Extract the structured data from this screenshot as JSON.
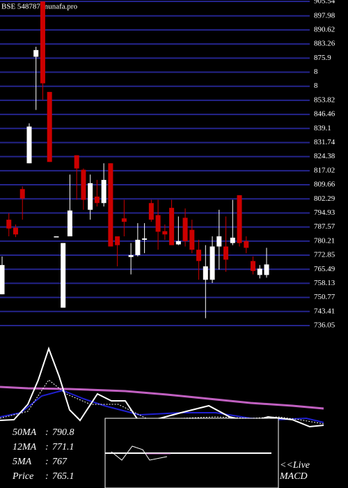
{
  "chart_data": {
    "type": "candlestick",
    "title": "BSE 548787 munafa.pro",
    "up_color": "#ffffff",
    "down_color": "#cc0000",
    "grid_color": "#24248c",
    "grid": true,
    "ylim": [
      736.05,
      905.54
    ],
    "yticks": [
      905.54,
      897.98,
      890.62,
      883.26,
      875.9,
      {
        "value": 868.54,
        "label": "8"
      },
      {
        "value": 861.18,
        "label": "8"
      },
      853.82,
      846.46,
      839.1,
      831.74,
      824.38,
      817.02,
      809.66,
      802.29,
      794.93,
      787.57,
      780.21,
      772.85,
      765.49,
      758.13,
      750.77,
      743.41,
      736.05
    ],
    "candles": [
      {
        "o": 752.4,
        "h": 772.2,
        "l": 752.4,
        "c": 767.7
      },
      {
        "o": 791.4,
        "h": 794.8,
        "l": 782.7,
        "c": 786.8
      },
      {
        "o": 787.2,
        "h": 788.9,
        "l": 782.3,
        "c": 783.7
      },
      {
        "o": 807.4,
        "h": 808.8,
        "l": 791.4,
        "c": 802.5
      },
      {
        "o": 820.9,
        "h": 841.8,
        "l": 820.9,
        "c": 840.1
      },
      {
        "o": 876.6,
        "h": 881.8,
        "l": 848.8,
        "c": 880.1
      },
      {
        "o": 905.5,
        "h": 905.5,
        "l": 854,
        "c": 862.7
      },
      {
        "o": 858.2,
        "h": 858.2,
        "l": 821.6,
        "c": 821.6
      },
      {
        "o": 782.7,
        "h": 782.7,
        "l": 782.7,
        "c": 782.7
      },
      {
        "o": 745.4,
        "h": 779.2,
        "l": 745.4,
        "c": 779.2
      },
      {
        "o": 782.7,
        "h": 815,
        "l": 782.7,
        "c": 796.2
      },
      {
        "o": 825.1,
        "h": 825.1,
        "l": 801.8,
        "c": 818.2
      },
      {
        "o": 817.5,
        "h": 818.2,
        "l": 796.6,
        "c": 801.8
      },
      {
        "o": 796.6,
        "h": 815,
        "l": 791.4,
        "c": 810.5
      },
      {
        "o": 803.5,
        "h": 812.2,
        "l": 798.3,
        "c": 800.1
      },
      {
        "o": 800.1,
        "h": 820.9,
        "l": 798.3,
        "c": 812.2
      },
      {
        "o": 820.9,
        "h": 820.9,
        "l": 777.4,
        "c": 777.4
      },
      {
        "o": 782.7,
        "h": 782.7,
        "l": 767,
        "c": 778.1
      },
      {
        "o": 792.1,
        "h": 801.8,
        "l": 782.7,
        "c": 790.3
      },
      {
        "o": 771.9,
        "h": 779.2,
        "l": 762.8,
        "c": 772.9
      },
      {
        "o": 772.9,
        "h": 789.6,
        "l": 772.2,
        "c": 780.9
      },
      {
        "o": 780.9,
        "h": 789.6,
        "l": 773.9,
        "c": 781.6
      },
      {
        "o": 800.1,
        "h": 801.8,
        "l": 790.3,
        "c": 791.4
      },
      {
        "o": 793.8,
        "h": 801.8,
        "l": 775.7,
        "c": 785.1
      },
      {
        "o": 785.4,
        "h": 788.9,
        "l": 780.9,
        "c": 783.7
      },
      {
        "o": 797.6,
        "h": 801.8,
        "l": 778.1,
        "c": 778.1
      },
      {
        "o": 778.5,
        "h": 793.1,
        "l": 778.1,
        "c": 780.2
      },
      {
        "o": 792.4,
        "h": 797.3,
        "l": 777.4,
        "c": 780.2
      },
      {
        "o": 786.1,
        "h": 791.4,
        "l": 773.9,
        "c": 775.7
      },
      {
        "o": 775.7,
        "h": 780.9,
        "l": 760,
        "c": 769.8
      },
      {
        "o": 760,
        "h": 778.1,
        "l": 739.9,
        "c": 767
      },
      {
        "o": 760,
        "h": 782.7,
        "l": 758.3,
        "c": 777.4
      },
      {
        "o": 777.4,
        "h": 796.6,
        "l": 765.3,
        "c": 782.7
      },
      {
        "o": 777.4,
        "h": 793.1,
        "l": 764.2,
        "c": 770.5
      },
      {
        "o": 779.2,
        "h": 801.8,
        "l": 778.1,
        "c": 782
      },
      {
        "o": 804.2,
        "h": 804.2,
        "l": 777.4,
        "c": 779.2
      },
      {
        "o": 780.2,
        "h": 782.7,
        "l": 773.9,
        "c": 776.7
      },
      {
        "o": 769.8,
        "h": 772.2,
        "l": 762.8,
        "c": 764.6
      },
      {
        "o": 762.5,
        "h": 767.7,
        "l": 760.7,
        "c": 765.8
      },
      {
        "o": 762.5,
        "h": 776.7,
        "l": 761.1,
        "c": 768
      }
    ],
    "indicators": [
      {
        "label": "50MA",
        "value": 790.8
      },
      {
        "label": "12MA",
        "value": 771.1
      },
      {
        "label": "5MA",
        "value": 767
      },
      {
        "label": "Price",
        "value": 765.1
      }
    ],
    "macd_labels": [
      "<<Live",
      "MACD"
    ]
  }
}
